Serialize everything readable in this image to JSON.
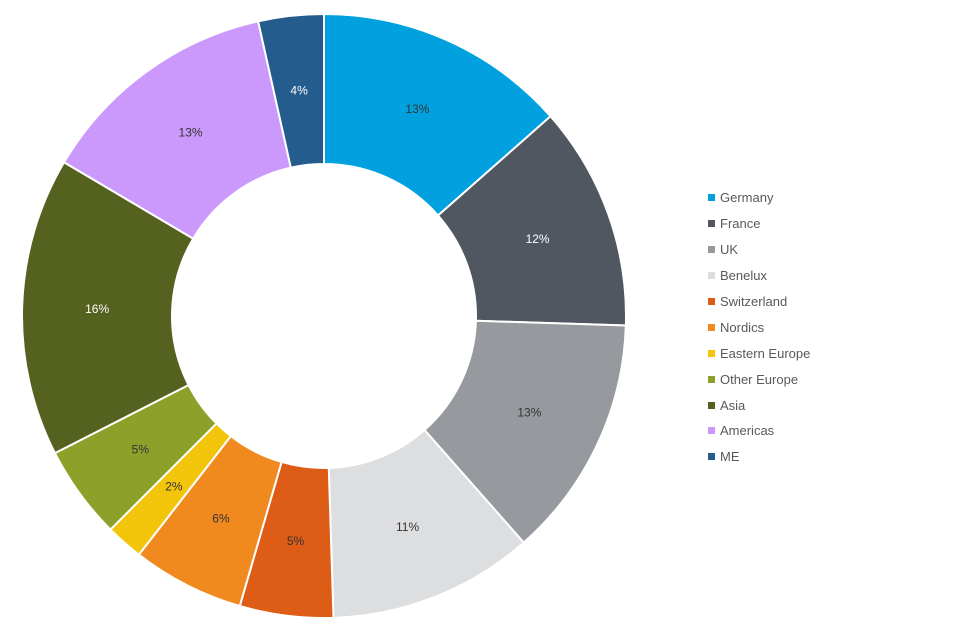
{
  "chart_data": {
    "type": "pie",
    "variant": "donut",
    "legend_position": "right",
    "categories": [
      "Germany",
      "France",
      "UK",
      "Benelux",
      "Switzerland",
      "Nordics",
      "Eastern Europe",
      "Other Europe",
      "Asia",
      "Americas",
      "ME"
    ],
    "values": [
      13.5,
      12,
      13,
      11,
      5,
      6,
      2,
      5,
      16,
      13,
      3.5
    ],
    "labels": [
      "13%",
      "12%",
      "13%",
      "11%",
      "5%",
      "6%",
      "2%",
      "5%",
      "16%",
      "13%",
      "4%"
    ],
    "colors": [
      "#00A1DE",
      "#505761",
      "#969A9E",
      "#DDDEE0",
      "#DD5C16",
      "#F08A1F",
      "#F2C50B",
      "#8DA12A",
      "#55611F",
      "#CB99FB",
      "#245C8D"
    ],
    "label_colors": [
      "#333333",
      "#ffffff",
      "#333333",
      "#333333",
      "#333333",
      "#333333",
      "#333333",
      "#333333",
      "#ffffff",
      "#333333",
      "#ffffff"
    ]
  }
}
